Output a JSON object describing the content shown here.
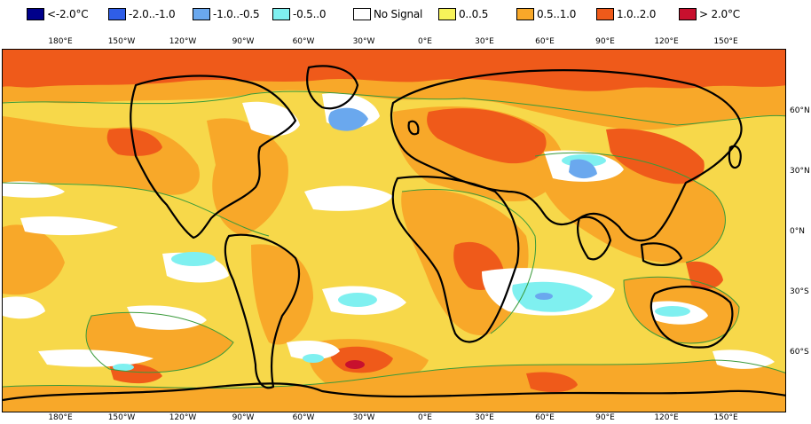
{
  "legend": [
    {
      "label": "<-2.0°C",
      "color": "#00008b"
    },
    {
      "label": "-2.0..-1.0",
      "color": "#2f5ee8"
    },
    {
      "label": "-1.0..-0.5",
      "color": "#6aa8ee"
    },
    {
      "label": "-0.5..0",
      "color": "#7ff0f0"
    },
    {
      "label": "No Signal",
      "color": "#ffffff"
    },
    {
      "label": "0..0.5",
      "color": "#f7f35a"
    },
    {
      "label": "0.5..1.0",
      "color": "#f8a829"
    },
    {
      "label": "1.0..2.0",
      "color": "#ef5a1a"
    },
    {
      "label": "> 2.0°C",
      "color": "#c8102e"
    }
  ],
  "longitude_labels": [
    "180°E",
    "150°W",
    "120°W",
    "90°W",
    "60°W",
    "30°W",
    "0°E",
    "30°E",
    "60°E",
    "90°E",
    "120°E",
    "150°E"
  ],
  "latitude_labels": [
    "60°N",
    "30°N",
    "0°N",
    "30°S",
    "60°S"
  ],
  "colors": {
    "ocean_base": "#f7d84a",
    "warm": "#f8a829",
    "hot": "#ef5a1a",
    "very_hot": "#c8102e",
    "cool_light": "#7ff0f0",
    "cool_mid": "#6aa8ee",
    "no_signal": "#ffffff",
    "contour": "#3a9a3a",
    "coastline": "#000000"
  }
}
